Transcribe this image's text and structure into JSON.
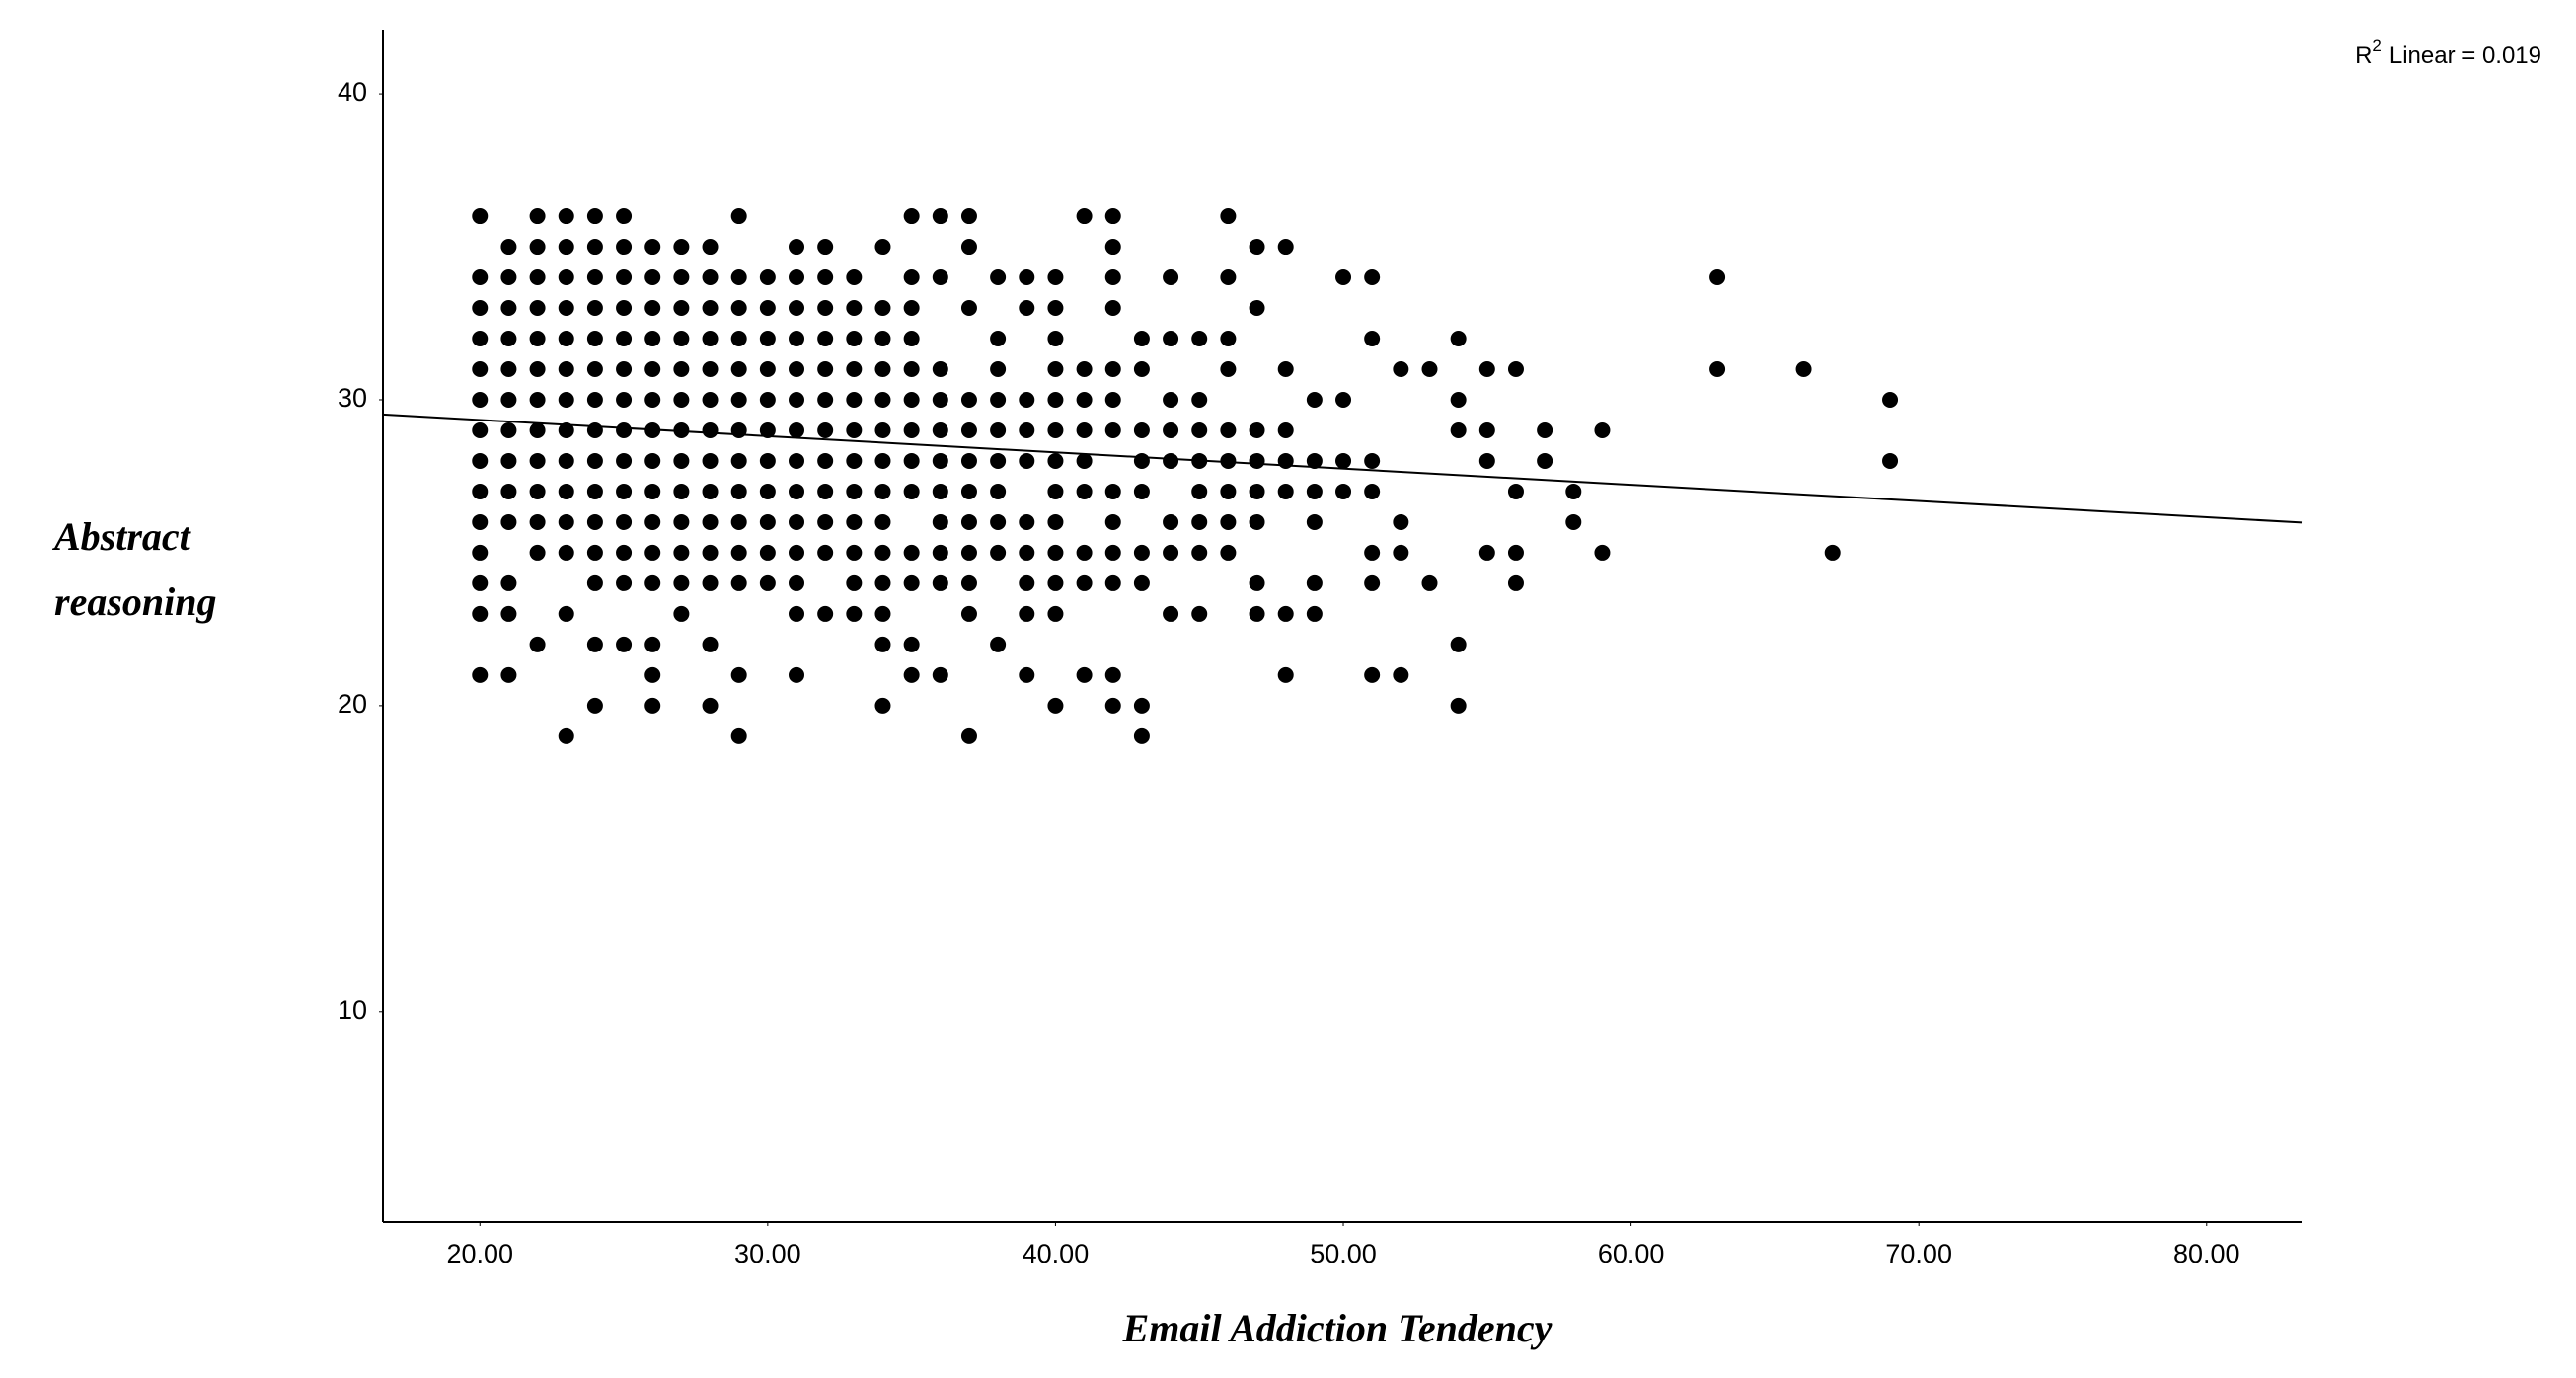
{
  "chart_data": {
    "type": "scatter",
    "xlabel": "Email Addiction Tendency",
    "ylabel": [
      "Abstract",
      "reasoning"
    ],
    "annotation": {
      "base": "R",
      "sup": "2",
      "text": "Linear = 0.019"
    },
    "color": "#000000",
    "fit": {
      "intercept": 30.4,
      "slope": -0.053
    },
    "xlim": [
      16.63,
      83.3
    ],
    "ylim": [
      3.12,
      42.1
    ],
    "xticks": [
      {
        "value": 20,
        "label": "20.00"
      },
      {
        "value": 30,
        "label": "30.00"
      },
      {
        "value": 40,
        "label": "40.00"
      },
      {
        "value": 50,
        "label": "50.00"
      },
      {
        "value": 60,
        "label": "60.00"
      },
      {
        "value": 70,
        "label": "70.00"
      },
      {
        "value": 80,
        "label": "80.00"
      }
    ],
    "yticks": [
      10,
      20,
      30,
      40
    ],
    "grid": false,
    "x": [
      20,
      20,
      20,
      20,
      20,
      20,
      20,
      20,
      20,
      20,
      20,
      20,
      20,
      20,
      21,
      21,
      21,
      21,
      21,
      21,
      21,
      21,
      21,
      21,
      21,
      21,
      21,
      22,
      22,
      22,
      22,
      22,
      22,
      22,
      22,
      22,
      22,
      22,
      22,
      22,
      23,
      23,
      23,
      23,
      23,
      23,
      23,
      23,
      23,
      23,
      23,
      23,
      23,
      23,
      24,
      24,
      24,
      24,
      24,
      24,
      24,
      24,
      24,
      24,
      24,
      24,
      24,
      24,
      24,
      25,
      25,
      25,
      25,
      25,
      25,
      25,
      25,
      25,
      25,
      25,
      25,
      25,
      25,
      26,
      26,
      26,
      26,
      26,
      26,
      26,
      26,
      26,
      26,
      26,
      26,
      26,
      26,
      26,
      27,
      27,
      27,
      27,
      27,
      27,
      27,
      27,
      27,
      27,
      27,
      27,
      27,
      28,
      28,
      28,
      28,
      28,
      28,
      28,
      28,
      28,
      28,
      28,
      28,
      28,
      28,
      29,
      29,
      29,
      29,
      29,
      29,
      29,
      29,
      29,
      29,
      29,
      29,
      29,
      29,
      30,
      30,
      30,
      30,
      30,
      30,
      30,
      30,
      30,
      30,
      30,
      31,
      31,
      31,
      31,
      31,
      31,
      31,
      31,
      31,
      31,
      31,
      31,
      31,
      31,
      32,
      32,
      32,
      32,
      32,
      32,
      32,
      32,
      32,
      32,
      32,
      32,
      33,
      33,
      33,
      33,
      33,
      33,
      33,
      33,
      33,
      33,
      33,
      33,
      34,
      34,
      34,
      34,
      34,
      34,
      34,
      34,
      34,
      34,
      34,
      34,
      34,
      34,
      35,
      35,
      35,
      35,
      35,
      35,
      35,
      35,
      35,
      35,
      35,
      35,
      35,
      36,
      36,
      36,
      36,
      36,
      36,
      36,
      36,
      36,
      36,
      36,
      37,
      37,
      37,
      37,
      37,
      37,
      37,
      37,
      37,
      37,
      37,
      37,
      38,
      38,
      38,
      38,
      38,
      38,
      38,
      38,
      38,
      38,
      39,
      39,
      39,
      39,
      39,
      39,
      39,
      39,
      39,
      39,
      40,
      40,
      40,
      40,
      40,
      40,
      40,
      40,
      40,
      40,
      40,
      40,
      40,
      41,
      41,
      41,
      41,
      41,
      41,
      41,
      41,
      41,
      42,
      42,
      42,
      42,
      42,
      42,
      42,
      42,
      42,
      42,
      42,
      42,
      42,
      43,
      43,
      43,
      43,
      43,
      43,
      43,
      43,
      43,
      44,
      44,
      44,
      44,
      44,
      44,
      44,
      44,
      45,
      45,
      45,
      45,
      45,
      45,
      45,
      45,
      46,
      46,
      46,
      46,
      46,
      46,
      46,
      46,
      46,
      47,
      47,
      47,
      47,
      47,
      47,
      47,
      47,
      48,
      48,
      48,
      48,
      48,
      48,
      48,
      49,
      49,
      49,
      49,
      49,
      49,
      50,
      50,
      50,
      50,
      51,
      51,
      51,
      51,
      51,
      51,
      51,
      52,
      52,
      52,
      52,
      53,
      53,
      54,
      54,
      54,
      54,
      54,
      55,
      55,
      55,
      55,
      56,
      56,
      56,
      56,
      57,
      57,
      58,
      58,
      59,
      59,
      63,
      63,
      66,
      67,
      69,
      69
    ],
    "values": [
      36,
      34,
      33,
      32,
      31,
      30,
      29,
      28,
      27,
      26,
      25,
      24,
      23,
      21,
      35,
      34,
      33,
      32,
      31,
      30,
      29,
      28,
      27,
      26,
      24,
      23,
      21,
      36,
      35,
      34,
      33,
      32,
      31,
      30,
      29,
      28,
      27,
      26,
      25,
      22,
      36,
      35,
      34,
      33,
      32,
      31,
      30,
      29,
      28,
      27,
      26,
      25,
      23,
      19,
      36,
      35,
      34,
      33,
      32,
      31,
      30,
      29,
      28,
      27,
      26,
      25,
      24,
      22,
      20,
      36,
      35,
      34,
      33,
      32,
      31,
      30,
      29,
      28,
      27,
      26,
      25,
      24,
      22,
      35,
      34,
      33,
      32,
      31,
      30,
      29,
      28,
      27,
      26,
      25,
      24,
      22,
      21,
      20,
      35,
      34,
      33,
      32,
      31,
      30,
      29,
      28,
      27,
      26,
      25,
      24,
      23,
      35,
      34,
      33,
      32,
      31,
      30,
      29,
      28,
      27,
      26,
      25,
      24,
      22,
      20,
      36,
      34,
      33,
      32,
      31,
      30,
      29,
      28,
      27,
      26,
      25,
      24,
      21,
      19,
      34,
      33,
      32,
      31,
      30,
      29,
      28,
      27,
      26,
      25,
      24,
      35,
      34,
      33,
      32,
      31,
      30,
      29,
      28,
      27,
      26,
      25,
      24,
      23,
      21,
      35,
      34,
      33,
      32,
      31,
      30,
      29,
      28,
      27,
      26,
      25,
      23,
      34,
      33,
      32,
      31,
      30,
      29,
      28,
      27,
      26,
      25,
      24,
      23,
      35,
      33,
      32,
      31,
      30,
      29,
      28,
      27,
      26,
      25,
      24,
      23,
      22,
      20,
      36,
      34,
      33,
      32,
      31,
      30,
      29,
      28,
      27,
      25,
      24,
      22,
      21,
      36,
      34,
      31,
      30,
      29,
      28,
      27,
      26,
      25,
      24,
      21,
      36,
      35,
      33,
      30,
      29,
      28,
      27,
      26,
      25,
      24,
      23,
      19,
      34,
      32,
      31,
      30,
      29,
      28,
      27,
      26,
      25,
      22,
      34,
      33,
      30,
      29,
      28,
      26,
      25,
      24,
      23,
      21,
      34,
      33,
      32,
      31,
      30,
      29,
      28,
      27,
      26,
      25,
      24,
      23,
      20,
      36,
      31,
      30,
      29,
      28,
      27,
      25,
      24,
      21,
      36,
      35,
      34,
      33,
      31,
      30,
      29,
      27,
      26,
      25,
      24,
      21,
      20,
      32,
      31,
      29,
      28,
      27,
      25,
      24,
      20,
      19,
      34,
      32,
      30,
      29,
      28,
      26,
      25,
      23,
      32,
      30,
      29,
      28,
      27,
      26,
      25,
      23,
      36,
      34,
      32,
      31,
      29,
      28,
      27,
      26,
      25,
      35,
      33,
      29,
      28,
      27,
      26,
      24,
      23,
      35,
      31,
      29,
      28,
      27,
      23,
      21,
      30,
      28,
      27,
      26,
      24,
      23,
      34,
      30,
      28,
      27,
      34,
      32,
      28,
      27,
      25,
      24,
      21,
      31,
      26,
      25,
      21,
      31,
      24,
      32,
      30,
      29,
      22,
      20,
      31,
      29,
      28,
      25,
      31,
      27,
      25,
      24,
      29,
      28,
      27,
      26,
      29,
      25,
      34,
      31,
      31,
      25,
      30,
      28
    ]
  }
}
